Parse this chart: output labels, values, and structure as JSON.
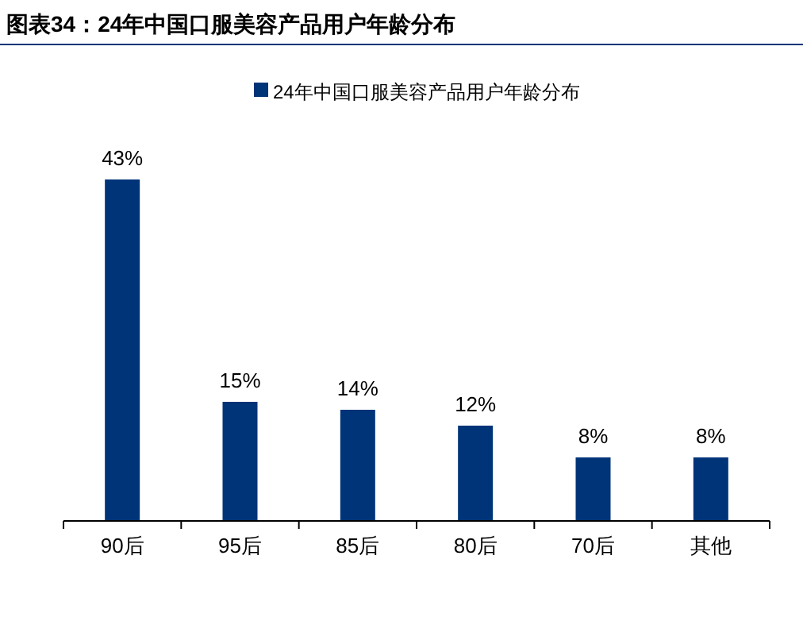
{
  "chart_data": {
    "type": "bar",
    "title": "图表34：24年中国口服美容产品用户年龄分布",
    "categories": [
      "90后",
      "95后",
      "85后",
      "80后",
      "70后",
      "其他"
    ],
    "series": [
      {
        "name": "24年中国口服美容产品用户年龄分布",
        "color": "#003478",
        "values": [
          43,
          15,
          14,
          12,
          8,
          8
        ],
        "value_labels": [
          "43%",
          "15%",
          "14%",
          "12%",
          "8%",
          "8%"
        ]
      }
    ],
    "legend": "top"
  }
}
